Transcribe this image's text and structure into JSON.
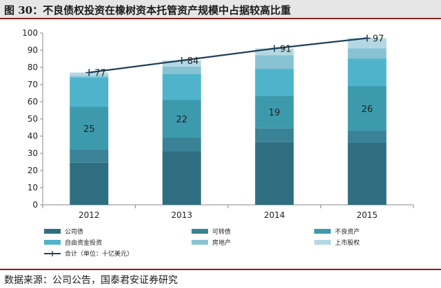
{
  "title": "图 30：不良债权投资在橡树资本托管资产规模中占据较高比重",
  "source": "数据来源：公司公告，国泰君安证券研究",
  "chart_data": {
    "type": "bar",
    "stacked": true,
    "categories": [
      "2012",
      "2013",
      "2014",
      "2015"
    ],
    "ylim": [
      0,
      100
    ],
    "yticks": [
      0,
      10,
      20,
      30,
      40,
      50,
      60,
      70,
      80,
      90,
      100
    ],
    "series": [
      {
        "name": "公司债",
        "color": "#2f6e80",
        "values": [
          24.5,
          31,
          36.5,
          36
        ]
      },
      {
        "name": "可转债",
        "color": "#3a8295",
        "values": [
          7.5,
          8,
          8,
          7
        ]
      },
      {
        "name": "不良资产",
        "color": "#3d9aad",
        "values": [
          25,
          22,
          19,
          26
        ]
      },
      {
        "name": "自由资金投资",
        "color": "#4fb3cb",
        "values": [
          17,
          15,
          15.5,
          16
        ]
      },
      {
        "name": "房地产",
        "color": "#88c3d3",
        "values": [
          1,
          4.5,
          8,
          6
        ]
      },
      {
        "name": "上市股权",
        "color": "#b3d8e3",
        "values": [
          2,
          3.5,
          4,
          6
        ]
      }
    ],
    "total": {
      "name": "合计（单位：十亿美元）",
      "color": "#1f3e5a",
      "values": [
        77,
        84,
        91,
        97
      ]
    },
    "data_labels": [
      {
        "series": "不良资产",
        "values": [
          "25",
          "22",
          "19",
          "26"
        ]
      },
      {
        "series": "合计（单位：十亿美元）",
        "values": [
          "77",
          "84",
          "91",
          "97"
        ]
      }
    ],
    "legend_position": "bottom"
  }
}
